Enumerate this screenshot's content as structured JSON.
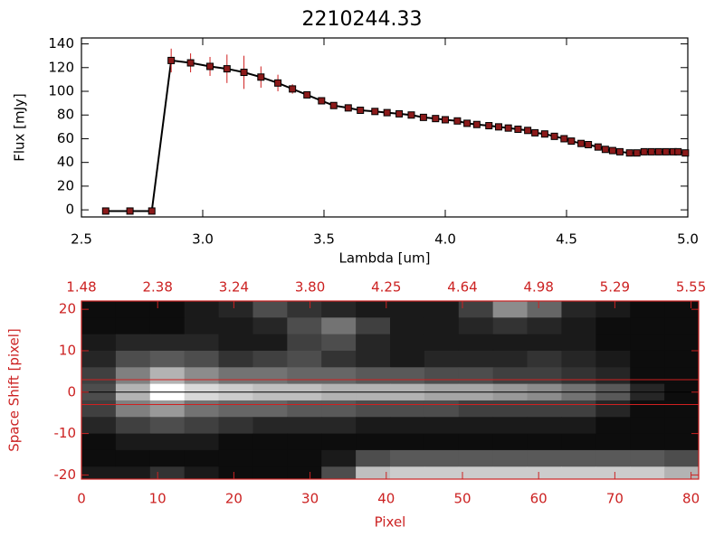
{
  "chart_data": [
    {
      "type": "line",
      "title": "2210244.33",
      "xlabel": "Lambda [um]",
      "ylabel": "Flux [mJy]",
      "xlim": [
        2.5,
        5.0
      ],
      "xticks": [
        2.5,
        {
          "value": 3,
          "label": "3.0"
        },
        3.5,
        {
          "value": 4,
          "label": "4.0"
        },
        4.5,
        {
          "value": 5,
          "label": "5.0"
        }
      ],
      "ylim": [
        -6,
        145
      ],
      "yticks": [
        0,
        20,
        40,
        60,
        80,
        100,
        120,
        140
      ],
      "color": "#000000",
      "marker_color": "#8b1a1a",
      "error_color": "#d02020",
      "x": [
        2.6,
        2.7,
        2.79,
        2.87,
        2.95,
        3.03,
        3.1,
        3.17,
        3.24,
        3.31,
        3.37,
        3.43,
        3.49,
        3.54,
        3.6,
        3.65,
        3.71,
        3.76,
        3.81,
        3.86,
        3.91,
        3.96,
        4.0,
        4.05,
        4.09,
        4.13,
        4.18,
        4.22,
        4.26,
        4.3,
        4.34,
        4.37,
        4.41,
        4.45,
        4.49,
        4.52,
        4.56,
        4.59,
        4.63,
        4.66,
        4.69,
        4.72,
        4.76,
        4.79,
        4.82,
        4.85,
        4.88,
        4.91,
        4.94,
        4.96,
        4.99
      ],
      "values": [
        -1,
        -1,
        -1,
        126,
        124,
        121,
        119,
        116,
        112,
        107,
        102,
        97,
        92,
        88,
        86,
        84,
        83,
        82,
        81,
        80,
        78,
        77,
        76,
        75,
        73,
        72,
        71,
        70,
        69,
        68,
        67,
        65,
        64,
        62,
        60,
        58,
        56,
        55,
        53,
        51,
        50,
        49,
        48,
        48,
        49,
        49,
        49,
        49,
        49,
        49,
        48
      ],
      "errors": [
        0,
        0,
        0,
        10,
        8,
        8,
        12,
        14,
        9,
        7,
        4,
        2,
        2,
        2,
        2,
        1,
        1,
        1,
        1,
        1,
        1,
        1,
        1,
        1,
        1,
        1,
        1,
        1,
        1,
        1,
        1,
        1,
        1,
        1,
        1,
        1,
        1,
        1,
        1,
        1,
        1,
        1,
        1,
        1,
        1,
        1,
        1,
        1,
        1,
        1,
        1
      ]
    },
    {
      "type": "heatmap",
      "xlabel": "Pixel",
      "ylabel": "Space Shift [pixel]",
      "axis_color": "#cc2222",
      "xlim": [
        0,
        81
      ],
      "xticks": [
        0,
        10,
        20,
        30,
        40,
        50,
        60,
        70,
        80
      ],
      "x2ticks": [
        {
          "value": 0,
          "label": "1.48"
        },
        {
          "value": 10,
          "label": "2.38"
        },
        {
          "value": 20,
          "label": "3.24"
        },
        {
          "value": 30,
          "label": "3.80"
        },
        {
          "value": 40,
          "label": "4.25"
        },
        {
          "value": 50,
          "label": "4.64"
        },
        {
          "value": 60,
          "label": "4.98"
        },
        {
          "value": 70,
          "label": "5.29"
        },
        {
          "value": 80,
          "label": "5.55"
        }
      ],
      "ylim": [
        -21,
        22
      ],
      "yticks": [
        -20,
        -10,
        0,
        10,
        20
      ],
      "x_edges": [
        0,
        4.5,
        9,
        13.5,
        18,
        22.5,
        27,
        31.5,
        36,
        40.5,
        45,
        49.5,
        54,
        58.5,
        63,
        67.5,
        72,
        76.5,
        81
      ],
      "y_edges": [
        22,
        18,
        14,
        10,
        6,
        2,
        -2,
        -6,
        -10,
        -14,
        -18,
        -21
      ],
      "z": [
        [
          0.05,
          0.05,
          0.05,
          0.1,
          0.15,
          0.3,
          0.2,
          0.15,
          0.1,
          0.1,
          0.1,
          0.25,
          0.55,
          0.4,
          0.15,
          0.1,
          0.05,
          0.05
        ],
        [
          0.05,
          0.05,
          0.05,
          0.1,
          0.1,
          0.15,
          0.3,
          0.45,
          0.25,
          0.1,
          0.1,
          0.15,
          0.2,
          0.15,
          0.1,
          0.05,
          0.05,
          0.05
        ],
        [
          0.1,
          0.15,
          0.15,
          0.15,
          0.1,
          0.1,
          0.25,
          0.3,
          0.15,
          0.1,
          0.1,
          0.1,
          0.1,
          0.1,
          0.1,
          0.05,
          0.05,
          0.05
        ],
        [
          0.15,
          0.3,
          0.35,
          0.3,
          0.2,
          0.25,
          0.3,
          0.2,
          0.15,
          0.1,
          0.15,
          0.15,
          0.15,
          0.2,
          0.15,
          0.1,
          0.05,
          0.05
        ],
        [
          0.25,
          0.5,
          0.7,
          0.55,
          0.45,
          0.45,
          0.4,
          0.4,
          0.35,
          0.35,
          0.3,
          0.3,
          0.25,
          0.25,
          0.2,
          0.15,
          0.05,
          0.05
        ],
        [
          0.3,
          0.7,
          1.0,
          0.85,
          0.8,
          0.75,
          0.75,
          0.7,
          0.7,
          0.7,
          0.65,
          0.65,
          0.6,
          0.55,
          0.45,
          0.35,
          0.15,
          0.05
        ],
        [
          0.25,
          0.5,
          0.6,
          0.45,
          0.4,
          0.4,
          0.35,
          0.35,
          0.3,
          0.3,
          0.3,
          0.25,
          0.25,
          0.25,
          0.25,
          0.15,
          0.05,
          0.05
        ],
        [
          0.15,
          0.25,
          0.3,
          0.25,
          0.2,
          0.15,
          0.15,
          0.15,
          0.1,
          0.1,
          0.1,
          0.1,
          0.1,
          0.1,
          0.1,
          0.05,
          0.05,
          0.05
        ],
        [
          0.05,
          0.1,
          0.1,
          0.1,
          0.05,
          0.05,
          0.05,
          0.05,
          0.05,
          0.05,
          0.05,
          0.05,
          0.05,
          0.05,
          0.05,
          0.05,
          0.05,
          0.05
        ],
        [
          0.05,
          0.05,
          0.05,
          0.05,
          0.05,
          0.05,
          0.05,
          0.1,
          0.3,
          0.35,
          0.35,
          0.35,
          0.35,
          0.35,
          0.35,
          0.35,
          0.35,
          0.3
        ],
        [
          0.1,
          0.1,
          0.2,
          0.1,
          0.05,
          0.05,
          0.05,
          0.3,
          0.75,
          0.8,
          0.8,
          0.8,
          0.8,
          0.8,
          0.8,
          0.8,
          0.8,
          0.7
        ]
      ],
      "hlines": [
        {
          "y": 3,
          "color": "#d02020"
        },
        {
          "y": 0,
          "color": "#000000"
        },
        {
          "y": -3,
          "color": "#d02020"
        }
      ]
    }
  ]
}
